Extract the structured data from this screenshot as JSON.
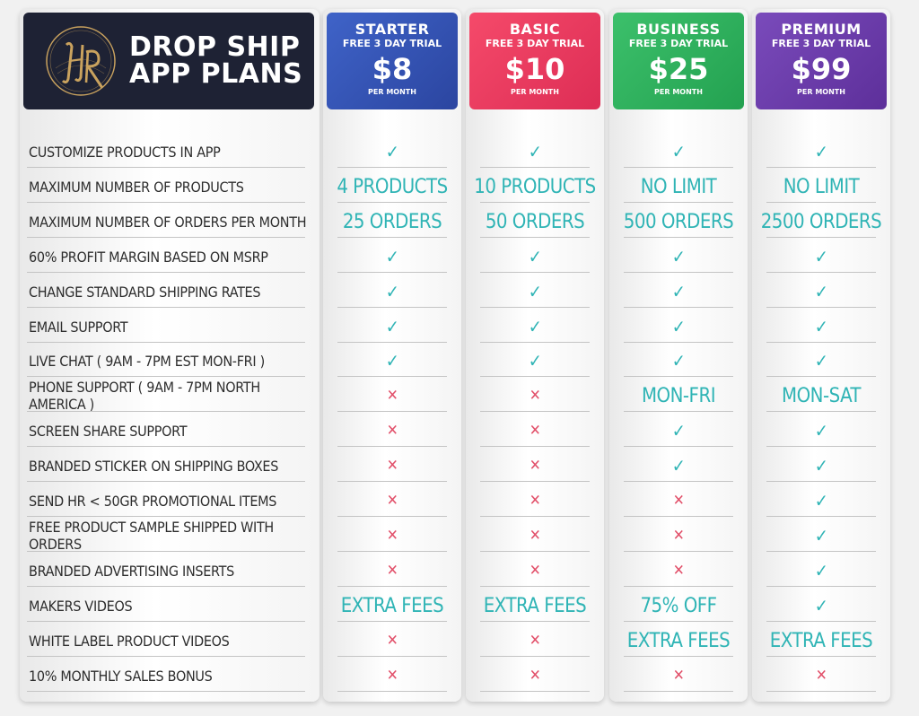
{
  "header": {
    "title_line1": "DROP SHIP",
    "title_line2": "APP PLANS",
    "logo_text": "HR"
  },
  "plans": [
    {
      "name": "STARTER",
      "trial": "FREE 3 DAY TRIAL",
      "price": "$8",
      "period": "PER MONTH",
      "color": "#3452b4"
    },
    {
      "name": "BASIC",
      "trial": "FREE 3 DAY TRIAL",
      "price": "$10",
      "period": "PER MONTH",
      "color": "#ec3a5f"
    },
    {
      "name": "BUSINESS",
      "trial": "FREE 3 DAY TRIAL",
      "price": "$25",
      "period": "PER MONTH",
      "color": "#2daf5c"
    },
    {
      "name": "PREMIUM",
      "trial": "FREE 3 DAY TRIAL",
      "price": "$99",
      "period": "PER MONTH",
      "color": "#6a3ca8"
    }
  ],
  "colors": {
    "check": "#2fb4b5",
    "cross": "#e2506a",
    "brand_bg": "#1e2234",
    "logo_gold": "#c9a25e"
  },
  "rows": [
    {
      "label": "CUSTOMIZE PRODUCTS IN APP",
      "values": [
        "check",
        "check",
        "check",
        "check"
      ]
    },
    {
      "label": "MAXIMUM NUMBER OF PRODUCTS",
      "values": [
        "4 PRODUCTS",
        "10 PRODUCTS",
        "NO LIMIT",
        "NO LIMIT"
      ]
    },
    {
      "label": "MAXIMUM NUMBER OF ORDERS PER MONTH",
      "values": [
        "25 ORDERS",
        "50 ORDERS",
        "500 ORDERS",
        "2500 ORDERS"
      ]
    },
    {
      "label": "60% PROFIT MARGIN BASED ON MSRP",
      "values": [
        "check",
        "check",
        "check",
        "check"
      ]
    },
    {
      "label": "CHANGE STANDARD SHIPPING RATES",
      "values": [
        "check",
        "check",
        "check",
        "check"
      ]
    },
    {
      "label": "EMAIL SUPPORT",
      "values": [
        "check",
        "check",
        "check",
        "check"
      ]
    },
    {
      "label": "LIVE CHAT ( 9AM - 7PM EST MON-FRI )",
      "values": [
        "check",
        "check",
        "check",
        "check"
      ]
    },
    {
      "label": "PHONE SUPPORT ( 9AM - 7PM NORTH AMERICA )",
      "values": [
        "cross",
        "cross",
        "MON-FRI",
        "MON-SAT"
      ]
    },
    {
      "label": "SCREEN SHARE SUPPORT",
      "values": [
        "cross",
        "cross",
        "check",
        "check"
      ]
    },
    {
      "label": "BRANDED STICKER ON SHIPPING BOXES",
      "values": [
        "cross",
        "cross",
        "check",
        "check"
      ]
    },
    {
      "label": "SEND HR < 50GR PROMOTIONAL ITEMS",
      "values": [
        "cross",
        "cross",
        "cross",
        "check"
      ]
    },
    {
      "label": "FREE PRODUCT SAMPLE SHIPPED WITH ORDERS",
      "values": [
        "cross",
        "cross",
        "cross",
        "check"
      ]
    },
    {
      "label": "BRANDED ADVERTISING INSERTS",
      "values": [
        "cross",
        "cross",
        "cross",
        "check"
      ]
    },
    {
      "label": "MAKERS VIDEOS",
      "values": [
        "EXTRA FEES",
        "EXTRA FEES",
        "75% OFF",
        "check"
      ]
    },
    {
      "label": "WHITE LABEL PRODUCT VIDEOS",
      "values": [
        "cross",
        "cross",
        "EXTRA FEES",
        "EXTRA FEES"
      ]
    },
    {
      "label": "10% MONTHLY SALES BONUS",
      "values": [
        "cross",
        "cross",
        "cross",
        "cross"
      ]
    }
  ]
}
